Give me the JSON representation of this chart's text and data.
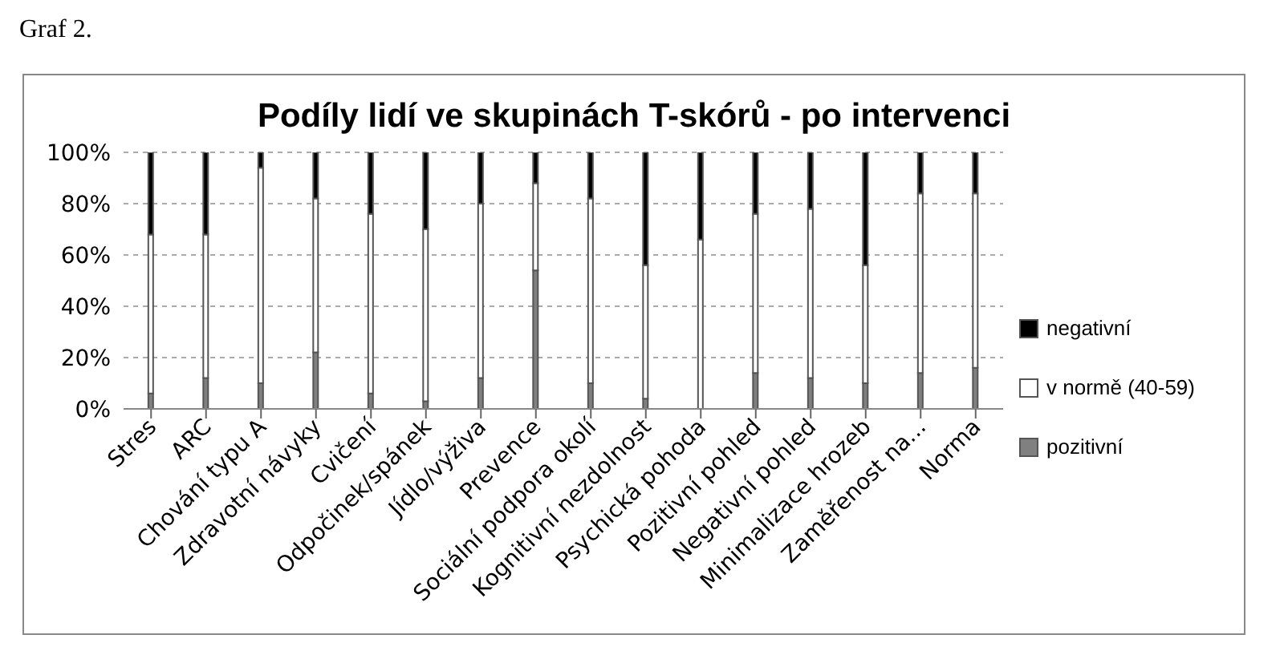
{
  "chart_data": {
    "type": "bar",
    "title": "Podíly lidí ve skupinách T-skórů - po intervenci",
    "annotations": [
      "Graf 2."
    ],
    "stacked": true,
    "categories": [
      "Stres",
      "ARC",
      "Chování typu A",
      "Zdravotní návyky",
      "Cvičení",
      "Odpočinek/spánek",
      "Jídlo/výživa",
      "Prevence",
      "Sociální podpora okolí",
      "Kognitivní nezdolnost",
      "Psychická pohoda",
      "Pozitivní pohled",
      "Negativní pohled",
      "Minimalizace hrozeb",
      "Zaměřenost na...",
      "Norma"
    ],
    "series": [
      {
        "name": "pozitivní",
        "color": "#808080",
        "values": [
          6,
          12,
          10,
          22,
          6,
          3,
          12,
          54,
          10,
          4,
          0,
          14,
          12,
          10,
          14,
          16
        ]
      },
      {
        "name": "v normě (40-59)",
        "color": "#ffffff",
        "values": [
          62,
          56,
          84,
          60,
          70,
          67,
          68,
          34,
          72,
          52,
          66,
          62,
          66,
          46,
          70,
          68
        ]
      },
      {
        "name": "negativní",
        "color": "#000000",
        "values": [
          32,
          32,
          6,
          18,
          24,
          30,
          20,
          12,
          18,
          44,
          34,
          24,
          22,
          44,
          16,
          16
        ]
      }
    ],
    "ylim": [
      0,
      100
    ],
    "yticks": [
      {
        "value": 0,
        "label": "0%"
      },
      {
        "value": 20,
        "label": "20%"
      },
      {
        "value": 40,
        "label": "40%"
      },
      {
        "value": 60,
        "label": "60%"
      },
      {
        "value": 80,
        "label": "80%"
      },
      {
        "value": 100,
        "label": "100%"
      }
    ],
    "grid": "y",
    "legend": "right"
  }
}
